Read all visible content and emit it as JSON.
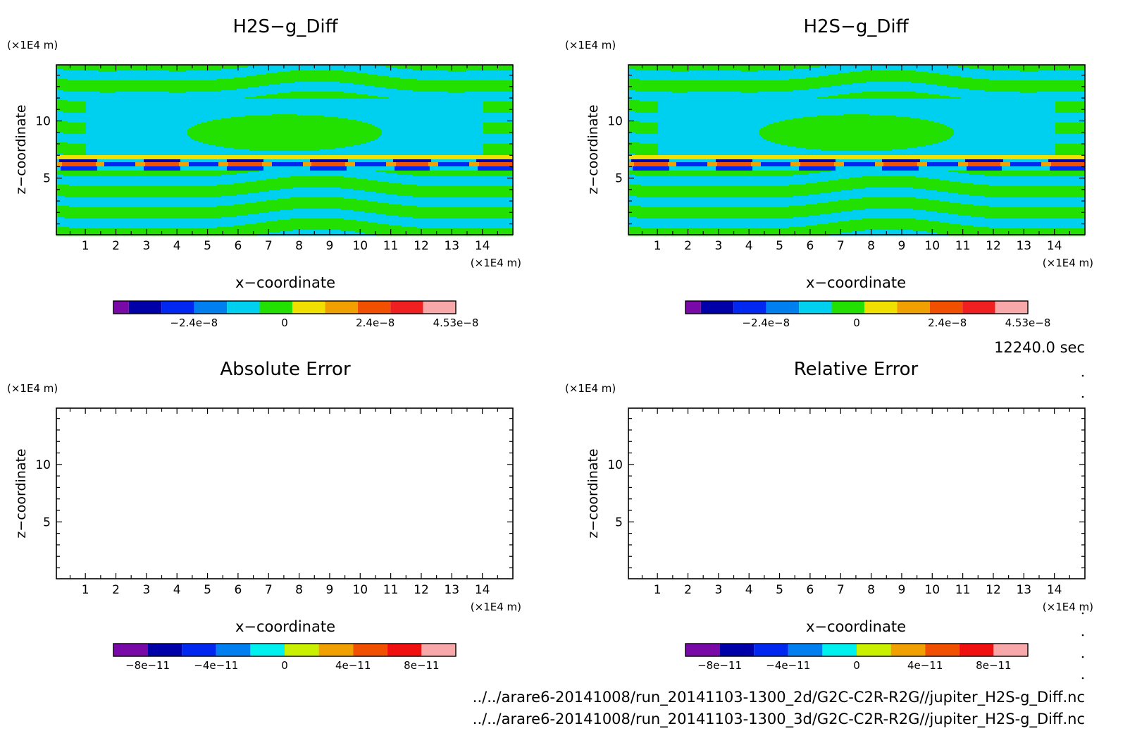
{
  "time_label": "12240.0 sec",
  "file_paths": [
    "../../arare6-20141008/run_20141103-1300_2d/G2C-C2R-R2G//jupiter_H2S-g_Diff.nc",
    "../../arare6-20141008/run_20141103-1300_3d/G2C-C2R-R2G//jupiter_H2S-g_Diff.nc"
  ],
  "colors": {
    "diff_palette": [
      "#7a0aa8",
      "#0000a8",
      "#0028f0",
      "#0080f0",
      "#00d0f0",
      "#22e000",
      "#f0e000",
      "#f0a000",
      "#f05000",
      "#f02020",
      "#f8a8a8"
    ],
    "error_palette": [
      "#7a0aa8",
      "#0000a8",
      "#0028f0",
      "#0080f0",
      "#00f0f0",
      "#c8f000",
      "#f0a000",
      "#f05000",
      "#f01010",
      "#f8a8a8"
    ]
  },
  "chart_data": [
    {
      "type": "heatmap",
      "title": "H2S−g_Diff",
      "xlabel": "x−coordinate",
      "ylabel": "z−coordinate",
      "x_unit": "(×1E4 m)",
      "y_unit": "(×1E4 m)",
      "xlim": [
        0.05,
        15
      ],
      "ylim": [
        0.05,
        14.9
      ],
      "x_ticks": [
        "1",
        "2",
        "3",
        "4",
        "5",
        "6",
        "7",
        "8",
        "9",
        "10",
        "11",
        "12",
        "13",
        "14"
      ],
      "y_ticks": [
        "5",
        "10"
      ],
      "field": "diff",
      "colorbar": {
        "range": [
          -4.53e-08,
          4.53e-08
        ],
        "levels": 11,
        "tick_labels": [
          {
            "label": "−2.4e−8",
            "value": -2.4e-08
          },
          {
            "label": "0",
            "value": 0
          },
          {
            "label": "2.4e−8",
            "value": 2.4e-08
          },
          {
            "label": "4.53e−8",
            "value": 4.53e-08
          }
        ]
      }
    },
    {
      "type": "heatmap",
      "title": "H2S−g_Diff",
      "xlabel": "x−coordinate",
      "ylabel": "z−coordinate",
      "x_unit": "(×1E4 m)",
      "y_unit": "(×1E4 m)",
      "xlim": [
        0.05,
        15
      ],
      "ylim": [
        0.05,
        14.9
      ],
      "x_ticks": [
        "1",
        "2",
        "3",
        "4",
        "5",
        "6",
        "7",
        "8",
        "9",
        "10",
        "11",
        "12",
        "13",
        "14"
      ],
      "y_ticks": [
        "5",
        "10"
      ],
      "field": "diff",
      "colorbar": {
        "range": [
          -4.53e-08,
          4.53e-08
        ],
        "levels": 11,
        "tick_labels": [
          {
            "label": "−2.4e−8",
            "value": -2.4e-08
          },
          {
            "label": "0",
            "value": 0
          },
          {
            "label": "2.4e−8",
            "value": 2.4e-08
          },
          {
            "label": "4.53e−8",
            "value": 4.53e-08
          }
        ]
      }
    },
    {
      "type": "heatmap",
      "title": "Absolute Error",
      "xlabel": "x−coordinate",
      "ylabel": "z−coordinate",
      "x_unit": "(×1E4 m)",
      "y_unit": "(×1E4 m)",
      "xlim": [
        0.05,
        15
      ],
      "ylim": [
        0.05,
        14.9
      ],
      "x_ticks": [
        "1",
        "2",
        "3",
        "4",
        "5",
        "6",
        "7",
        "8",
        "9",
        "10",
        "11",
        "12",
        "13",
        "14"
      ],
      "y_ticks": [
        "5",
        "10"
      ],
      "field": "empty",
      "colorbar": {
        "range": [
          -1e-10,
          1e-10
        ],
        "levels": 10,
        "tick_labels": [
          {
            "label": "−8e−11",
            "value": -8e-11
          },
          {
            "label": "−4e−11",
            "value": -4e-11
          },
          {
            "label": "0",
            "value": 0
          },
          {
            "label": "4e−11",
            "value": 4e-11
          },
          {
            "label": "8e−11",
            "value": 8e-11
          }
        ]
      }
    },
    {
      "type": "heatmap",
      "title": "Relative Error",
      "xlabel": "x−coordinate",
      "ylabel": "z−coordinate",
      "x_unit": "(×1E4 m)",
      "y_unit": "(×1E4 m)",
      "xlim": [
        0.05,
        15
      ],
      "ylim": [
        0.05,
        14.9
      ],
      "x_ticks": [
        "1",
        "2",
        "3",
        "4",
        "5",
        "6",
        "7",
        "8",
        "9",
        "10",
        "11",
        "12",
        "13",
        "14"
      ],
      "y_ticks": [
        "5",
        "10"
      ],
      "field": "empty",
      "colorbar": {
        "range": [
          -1e-10,
          1e-10
        ],
        "levels": 10,
        "tick_labels": [
          {
            "label": "−8e−11",
            "value": -8e-11
          },
          {
            "label": "−4e−11",
            "value": -4e-11
          },
          {
            "label": "0",
            "value": 0
          },
          {
            "label": "4e−11",
            "value": 4e-11
          },
          {
            "label": "8e−11",
            "value": 8e-11
          }
        ]
      }
    }
  ]
}
